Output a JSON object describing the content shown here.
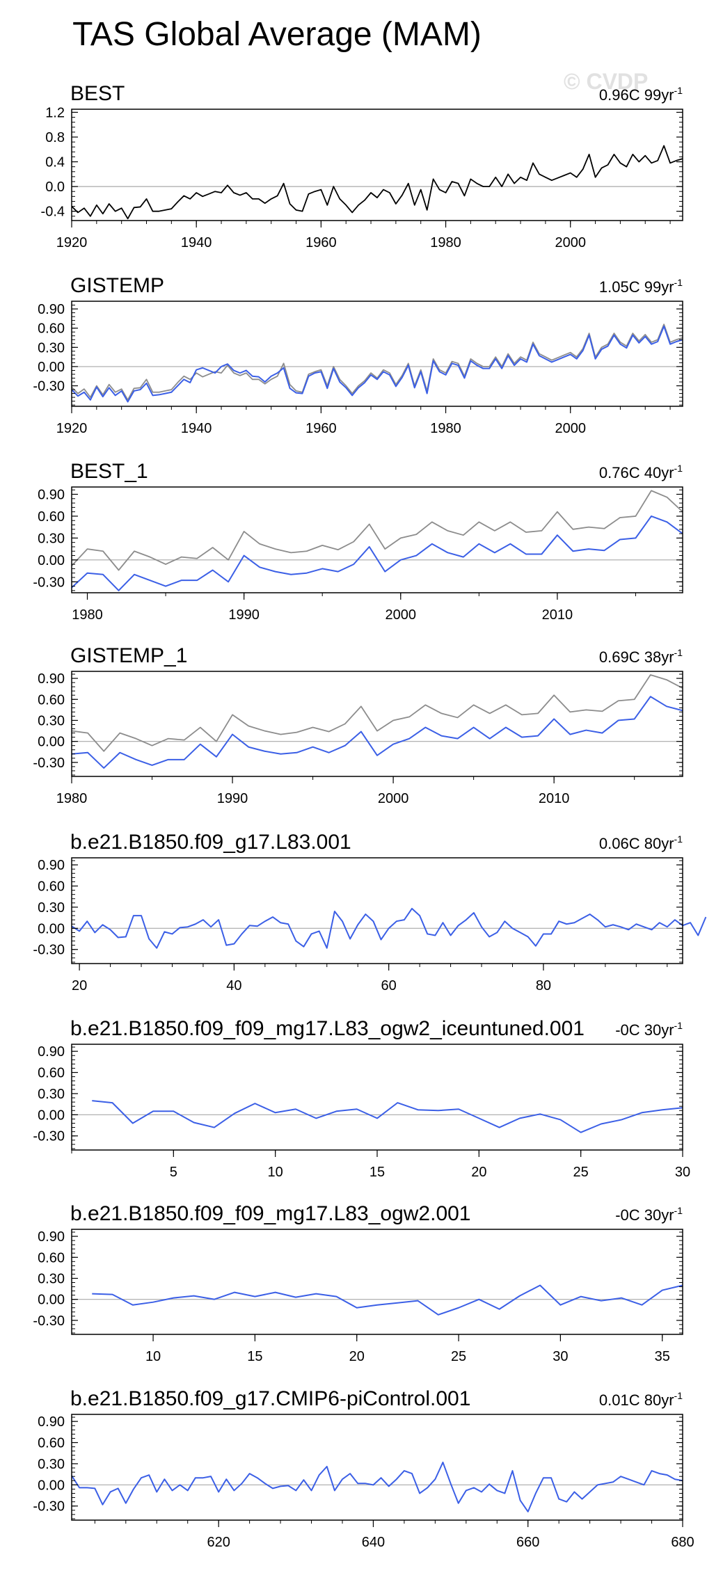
{
  "title": "TAS Global Average (MAM)",
  "watermark": "© CVDP",
  "colors": {
    "obs": "#000000",
    "ref": "#8c8c8c",
    "model": "#3b5fe6",
    "zero": "#a8a8a8"
  },
  "chart_data": [
    {
      "type": "line",
      "title": "BEST",
      "trend": "0.96C 99yr",
      "trend_sup": "-1",
      "xlim": [
        1920,
        2018
      ],
      "xticks": [
        1920,
        1940,
        1960,
        1980,
        2000
      ],
      "ylim": [
        -0.55,
        1.25
      ],
      "yticks": [
        -0.4,
        0.0,
        0.4,
        0.8,
        1.2
      ],
      "ytick_labels": [
        "-0.4",
        "0.0",
        "0.4",
        "0.8",
        "1.2"
      ],
      "x0": 1920,
      "series": [
        {
          "role": "obs",
          "values": [
            -0.32,
            -0.42,
            -0.35,
            -0.48,
            -0.3,
            -0.44,
            -0.28,
            -0.4,
            -0.35,
            -0.52,
            -0.34,
            -0.33,
            -0.2,
            -0.4,
            -0.4,
            -0.38,
            -0.36,
            -0.25,
            -0.15,
            -0.2,
            -0.1,
            -0.16,
            -0.12,
            -0.08,
            -0.1,
            0.02,
            -0.1,
            -0.14,
            -0.1,
            -0.2,
            -0.2,
            -0.27,
            -0.2,
            -0.15,
            0.05,
            -0.28,
            -0.38,
            -0.4,
            -0.12,
            -0.08,
            -0.05,
            -0.3,
            0.0,
            -0.2,
            -0.3,
            -0.42,
            -0.3,
            -0.22,
            -0.1,
            -0.18,
            -0.05,
            -0.1,
            -0.28,
            -0.14,
            0.05,
            -0.3,
            -0.05,
            -0.38,
            0.12,
            -0.05,
            -0.1,
            0.08,
            0.05,
            -0.15,
            0.12,
            0.05,
            0.0,
            0.0,
            0.15,
            0.0,
            0.2,
            0.05,
            0.15,
            0.1,
            0.38,
            0.2,
            0.15,
            0.1,
            0.14,
            0.18,
            0.22,
            0.15,
            0.28,
            0.52,
            0.15,
            0.3,
            0.35,
            0.52,
            0.38,
            0.32,
            0.52,
            0.4,
            0.5,
            0.38,
            0.42,
            0.66,
            0.38,
            0.42,
            0.45
          ]
        }
      ]
    },
    {
      "type": "line",
      "title": "GISTEMP",
      "trend": "1.05C 99yr",
      "trend_sup": "-1",
      "xlim": [
        1920,
        2018
      ],
      "xticks": [
        1920,
        1940,
        1960,
        1980,
        2000
      ],
      "ylim": [
        -0.62,
        1.02
      ],
      "yticks": [
        -0.3,
        0.0,
        0.3,
        0.6,
        0.9
      ],
      "ytick_labels": [
        "-0.30",
        "0.00",
        "0.30",
        "0.60",
        "0.90"
      ],
      "x0": 1920,
      "series": [
        {
          "role": "ref",
          "values": [
            -0.32,
            -0.42,
            -0.35,
            -0.48,
            -0.3,
            -0.44,
            -0.28,
            -0.4,
            -0.35,
            -0.52,
            -0.34,
            -0.33,
            -0.2,
            -0.4,
            -0.4,
            -0.38,
            -0.36,
            -0.25,
            -0.15,
            -0.2,
            -0.1,
            -0.16,
            -0.12,
            -0.08,
            -0.1,
            0.02,
            -0.1,
            -0.14,
            -0.1,
            -0.2,
            -0.2,
            -0.27,
            -0.2,
            -0.15,
            0.05,
            -0.28,
            -0.38,
            -0.4,
            -0.12,
            -0.08,
            -0.05,
            -0.3,
            0.0,
            -0.2,
            -0.3,
            -0.42,
            -0.3,
            -0.22,
            -0.1,
            -0.18,
            -0.05,
            -0.1,
            -0.28,
            -0.14,
            0.05,
            -0.3,
            -0.05,
            -0.38,
            0.12,
            -0.05,
            -0.1,
            0.08,
            0.05,
            -0.15,
            0.12,
            0.05,
            0.0,
            0.0,
            0.15,
            0.0,
            0.2,
            0.05,
            0.15,
            0.1,
            0.38,
            0.2,
            0.15,
            0.1,
            0.14,
            0.18,
            0.22,
            0.15,
            0.28,
            0.52,
            0.15,
            0.3,
            0.35,
            0.52,
            0.38,
            0.32,
            0.52,
            0.4,
            0.5,
            0.38,
            0.42,
            0.66,
            0.38,
            0.42,
            0.45
          ]
        },
        {
          "role": "model",
          "values": [
            -0.36,
            -0.46,
            -0.4,
            -0.52,
            -0.32,
            -0.47,
            -0.33,
            -0.45,
            -0.38,
            -0.55,
            -0.38,
            -0.36,
            -0.26,
            -0.45,
            -0.44,
            -0.42,
            -0.4,
            -0.3,
            -0.2,
            -0.25,
            -0.05,
            -0.02,
            -0.06,
            -0.1,
            0.0,
            0.04,
            -0.06,
            -0.1,
            -0.06,
            -0.15,
            -0.16,
            -0.24,
            -0.15,
            -0.1,
            -0.02,
            -0.34,
            -0.41,
            -0.42,
            -0.15,
            -0.1,
            -0.08,
            -0.34,
            -0.03,
            -0.24,
            -0.33,
            -0.45,
            -0.33,
            -0.25,
            -0.13,
            -0.2,
            -0.08,
            -0.13,
            -0.31,
            -0.17,
            0.02,
            -0.33,
            -0.08,
            -0.42,
            0.09,
            -0.08,
            -0.13,
            0.05,
            0.02,
            -0.18,
            0.09,
            0.02,
            -0.03,
            -0.03,
            0.12,
            -0.03,
            0.17,
            0.02,
            0.12,
            0.07,
            0.35,
            0.17,
            0.12,
            0.07,
            0.11,
            0.15,
            0.19,
            0.12,
            0.25,
            0.49,
            0.12,
            0.27,
            0.32,
            0.49,
            0.35,
            0.29,
            0.49,
            0.37,
            0.47,
            0.35,
            0.39,
            0.63,
            0.35,
            0.39,
            0.42
          ]
        }
      ]
    },
    {
      "type": "line",
      "title": "BEST_1",
      "trend": "0.76C 40yr",
      "trend_sup": "-1",
      "xlim": [
        1979,
        2018
      ],
      "xticks": [
        1980,
        1990,
        2000,
        2010
      ],
      "ylim": [
        -0.45,
        1.0
      ],
      "yticks": [
        -0.3,
        0.0,
        0.3,
        0.6,
        0.9
      ],
      "ytick_labels": [
        "-0.30",
        "0.00",
        "0.30",
        "0.60",
        "0.90"
      ],
      "x0": 1979,
      "series": [
        {
          "role": "ref",
          "values": [
            -0.08,
            0.15,
            0.12,
            -0.14,
            0.12,
            0.04,
            -0.06,
            0.04,
            0.02,
            0.17,
            0.0,
            0.39,
            0.22,
            0.15,
            0.1,
            0.12,
            0.2,
            0.14,
            0.25,
            0.49,
            0.15,
            0.3,
            0.35,
            0.52,
            0.4,
            0.34,
            0.52,
            0.4,
            0.52,
            0.38,
            0.4,
            0.66,
            0.42,
            0.45,
            0.43,
            0.58,
            0.6,
            0.95,
            0.86,
            0.66
          ]
        },
        {
          "role": "model",
          "values": [
            -0.38,
            -0.18,
            -0.2,
            -0.42,
            -0.2,
            -0.28,
            -0.36,
            -0.28,
            -0.28,
            -0.14,
            -0.3,
            0.06,
            -0.1,
            -0.16,
            -0.2,
            -0.18,
            -0.12,
            -0.16,
            -0.06,
            0.18,
            -0.16,
            0.0,
            0.06,
            0.22,
            0.1,
            0.04,
            0.22,
            0.1,
            0.22,
            0.08,
            0.08,
            0.34,
            0.12,
            0.15,
            0.13,
            0.28,
            0.3,
            0.6,
            0.52,
            0.36
          ]
        }
      ]
    },
    {
      "type": "line",
      "title": "GISTEMP_1",
      "trend": "0.69C 38yr",
      "trend_sup": "-1",
      "xlim": [
        1980,
        2018
      ],
      "xticks": [
        1980,
        1990,
        2000,
        2010
      ],
      "ylim": [
        -0.5,
        1.0
      ],
      "yticks": [
        -0.3,
        0.0,
        0.3,
        0.6,
        0.9
      ],
      "ytick_labels": [
        "-0.30",
        "0.00",
        "0.30",
        "0.60",
        "0.90"
      ],
      "x0": 1980,
      "series": [
        {
          "role": "ref",
          "values": [
            0.15,
            0.12,
            -0.14,
            0.12,
            0.04,
            -0.06,
            0.04,
            0.02,
            0.2,
            0.0,
            0.38,
            0.22,
            0.15,
            0.1,
            0.13,
            0.2,
            0.14,
            0.25,
            0.5,
            0.15,
            0.3,
            0.35,
            0.52,
            0.4,
            0.34,
            0.52,
            0.4,
            0.52,
            0.38,
            0.4,
            0.66,
            0.42,
            0.45,
            0.43,
            0.58,
            0.6,
            0.95,
            0.88,
            0.76
          ]
        },
        {
          "role": "model",
          "values": [
            -0.18,
            -0.16,
            -0.38,
            -0.16,
            -0.26,
            -0.34,
            -0.26,
            -0.26,
            -0.04,
            -0.22,
            0.1,
            -0.08,
            -0.14,
            -0.18,
            -0.16,
            -0.08,
            -0.16,
            -0.06,
            0.14,
            -0.2,
            -0.04,
            0.04,
            0.2,
            0.08,
            0.04,
            0.2,
            0.04,
            0.2,
            0.06,
            0.08,
            0.32,
            0.1,
            0.16,
            0.12,
            0.3,
            0.32,
            0.64,
            0.5,
            0.44
          ]
        }
      ]
    },
    {
      "type": "line",
      "title": "b.e21.B1850.f09_g17.L83.001",
      "trend": "0.06C 80yr",
      "trend_sup": "-1",
      "xlim": [
        19,
        98
      ],
      "xticks": [
        20,
        40,
        60,
        80
      ],
      "ylim": [
        -0.5,
        1.0
      ],
      "yticks": [
        -0.3,
        0.0,
        0.3,
        0.6,
        0.9
      ],
      "ytick_labels": [
        "-0.30",
        "0.00",
        "0.30",
        "0.60",
        "0.90"
      ],
      "x0": 19,
      "series": [
        {
          "role": "model",
          "values": [
            0.03,
            -0.04,
            0.1,
            -0.06,
            0.05,
            -0.02,
            -0.13,
            -0.12,
            0.18,
            0.18,
            -0.15,
            -0.28,
            -0.05,
            -0.08,
            0.01,
            0.02,
            0.06,
            0.12,
            0.02,
            0.12,
            -0.24,
            -0.22,
            -0.08,
            0.04,
            0.03,
            0.1,
            0.16,
            0.08,
            0.06,
            -0.18,
            -0.26,
            -0.08,
            -0.04,
            -0.28,
            0.24,
            0.1,
            -0.15,
            0.05,
            0.2,
            0.1,
            -0.16,
            0.0,
            0.1,
            0.12,
            0.28,
            0.18,
            -0.08,
            -0.1,
            0.08,
            -0.1,
            0.04,
            0.12,
            0.22,
            0.02,
            -0.12,
            -0.06,
            0.1,
            0.0,
            -0.06,
            -0.12,
            -0.25,
            -0.08,
            -0.08,
            0.1,
            0.06,
            0.08,
            0.14,
            0.2,
            0.12,
            0.02,
            0.05,
            0.02,
            -0.02,
            0.06,
            0.02,
            -0.02,
            0.08,
            0.02,
            0.12,
            0.04,
            0.08,
            -0.1,
            0.16
          ]
        }
      ]
    },
    {
      "type": "line",
      "title": "b.e21.B1850.f09_f09_mg17.L83_ogw2_iceuntuned.001",
      "trend": "-0C 30yr",
      "trend_sup": "-1",
      "xlim": [
        0,
        30
      ],
      "xticks": [
        5,
        10,
        15,
        20,
        25,
        30
      ],
      "ylim": [
        -0.5,
        1.0
      ],
      "yticks": [
        -0.3,
        0.0,
        0.3,
        0.6,
        0.9
      ],
      "ytick_labels": [
        "-0.30",
        "0.00",
        "0.30",
        "0.60",
        "0.90"
      ],
      "x0": 1,
      "series": [
        {
          "role": "model",
          "values": [
            0.2,
            0.17,
            -0.12,
            0.05,
            0.05,
            -0.11,
            -0.18,
            0.02,
            0.16,
            0.03,
            0.08,
            -0.05,
            0.05,
            0.08,
            -0.05,
            0.17,
            0.07,
            0.06,
            0.08,
            -0.05,
            -0.18,
            -0.05,
            0.01,
            -0.07,
            -0.25,
            -0.13,
            -0.07,
            0.03,
            0.07,
            0.1
          ]
        }
      ]
    },
    {
      "type": "line",
      "title": "b.e21.B1850.f09_f09_mg17.L83_ogw2.001",
      "trend": "-0C 30yr",
      "trend_sup": "-1",
      "xlim": [
        6,
        36
      ],
      "xticks": [
        10,
        15,
        20,
        25,
        30,
        35
      ],
      "ylim": [
        -0.5,
        1.0
      ],
      "yticks": [
        -0.3,
        0.0,
        0.3,
        0.6,
        0.9
      ],
      "ytick_labels": [
        "-0.30",
        "0.00",
        "0.30",
        "0.60",
        "0.90"
      ],
      "x0": 7,
      "series": [
        {
          "role": "model",
          "values": [
            0.08,
            0.07,
            -0.08,
            -0.04,
            0.02,
            0.05,
            0.0,
            0.1,
            0.04,
            0.1,
            0.03,
            0.08,
            0.04,
            -0.12,
            -0.08,
            -0.05,
            -0.02,
            -0.22,
            -0.12,
            0.0,
            -0.14,
            0.05,
            0.2,
            -0.08,
            0.04,
            -0.02,
            0.02,
            -0.08,
            0.13,
            0.2
          ]
        }
      ]
    },
    {
      "type": "line",
      "title": "b.e21.B1850.f09_g17.CMIP6-piControl.001",
      "trend": "0.01C 80yr",
      "trend_sup": "-1",
      "xlim": [
        601,
        680
      ],
      "xticks": [
        620,
        640,
        660,
        680
      ],
      "ylim": [
        -0.5,
        1.0
      ],
      "yticks": [
        -0.3,
        0.0,
        0.3,
        0.6,
        0.9
      ],
      "ytick_labels": [
        "-0.30",
        "0.00",
        "0.30",
        "0.60",
        "0.90"
      ],
      "x0": 601,
      "series": [
        {
          "role": "model",
          "values": [
            0.13,
            -0.04,
            -0.04,
            -0.05,
            -0.28,
            -0.1,
            -0.05,
            -0.26,
            -0.06,
            0.1,
            0.14,
            -0.1,
            0.08,
            -0.08,
            0.0,
            -0.08,
            0.1,
            0.1,
            0.12,
            -0.1,
            0.08,
            -0.08,
            0.02,
            0.16,
            0.1,
            0.02,
            -0.05,
            -0.02,
            -0.01,
            -0.08,
            0.07,
            -0.08,
            0.14,
            0.26,
            -0.08,
            0.08,
            0.16,
            0.02,
            0.02,
            0.0,
            0.1,
            -0.02,
            0.08,
            0.2,
            0.16,
            -0.12,
            -0.04,
            0.08,
            0.32,
            0.02,
            -0.26,
            -0.08,
            -0.04,
            -0.1,
            0.01,
            -0.08,
            -0.12,
            0.2,
            -0.22,
            -0.38,
            -0.12,
            0.1,
            0.1,
            -0.2,
            -0.24,
            -0.1,
            -0.2,
            -0.1,
            0.0,
            0.02,
            0.04,
            0.12,
            0.08,
            0.04,
            0.0,
            0.2,
            0.16,
            0.14,
            0.08,
            0.06
          ]
        }
      ]
    }
  ]
}
